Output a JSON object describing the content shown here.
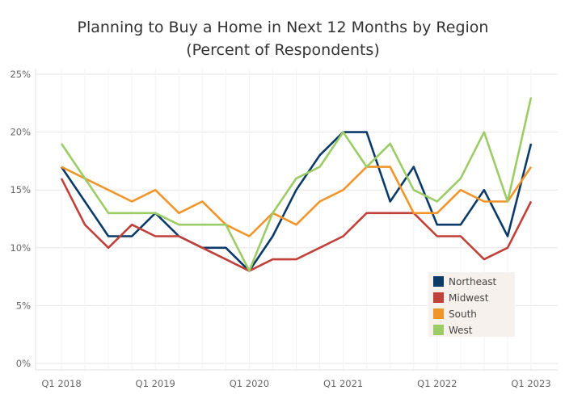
{
  "chart_data": {
    "type": "line",
    "title": "Planning to Buy a Home in Next 12 Months by Region",
    "subtitle": "(Percent of Respondents)",
    "xlabel": "",
    "ylabel": "",
    "ylim": [
      0,
      25
    ],
    "yticks": [
      "0%",
      "5%",
      "10%",
      "15%",
      "20%",
      "25%"
    ],
    "x": [
      "Q1 2018",
      "Q2 2018",
      "Q3 2018",
      "Q4 2018",
      "Q1 2019",
      "Q2 2019",
      "Q3 2019",
      "Q4 2019",
      "Q1 2020",
      "Q2 2020",
      "Q3 2020",
      "Q4 2020",
      "Q1 2021",
      "Q2 2021",
      "Q3 2021",
      "Q4 2021",
      "Q1 2022",
      "Q2 2022",
      "Q3 2022",
      "Q4 2022",
      "Q1 2023"
    ],
    "xtick_labels": [
      "Q1 2018",
      "Q1 2019",
      "Q1 2020",
      "Q1 2021",
      "Q1 2022",
      "Q1 2023"
    ],
    "grid": true,
    "legend_position": "bottom-right",
    "series": [
      {
        "name": "Northeast",
        "color": "#0b3a68",
        "values": [
          17,
          14,
          11,
          11,
          13,
          11,
          10,
          10,
          8,
          11,
          15,
          18,
          20,
          20,
          14,
          17,
          12,
          12,
          15,
          11,
          19
        ]
      },
      {
        "name": "Midwest",
        "color": "#c0403a",
        "values": [
          16,
          12,
          10,
          12,
          11,
          11,
          10,
          9,
          8,
          9,
          9,
          10,
          11,
          13,
          13,
          13,
          11,
          11,
          9,
          10,
          14
        ]
      },
      {
        "name": "South",
        "color": "#f0952a",
        "values": [
          17,
          16,
          15,
          14,
          15,
          13,
          14,
          12,
          11,
          13,
          12,
          14,
          15,
          17,
          17,
          13,
          13,
          15,
          14,
          14,
          17
        ]
      },
      {
        "name": "West",
        "color": "#9ccc65",
        "values": [
          19,
          16,
          13,
          13,
          13,
          12,
          12,
          12,
          8,
          13,
          16,
          17,
          20,
          17,
          19,
          15,
          14,
          16,
          20,
          14,
          23
        ]
      }
    ]
  }
}
